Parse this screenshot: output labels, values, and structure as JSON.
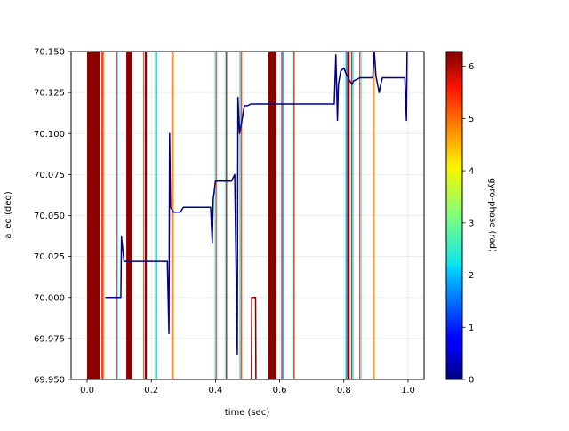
{
  "chart_data": {
    "type": "line",
    "title": "",
    "xlabel": "time (sec)",
    "ylabel": "a_eq (deg)",
    "xlim": [
      -0.05,
      1.05
    ],
    "ylim": [
      69.95,
      70.15
    ],
    "x_ticks": [
      0.0,
      0.2,
      0.4,
      0.6,
      0.8,
      1.0
    ],
    "x_tick_labels": [
      "0.0",
      "0.2",
      "0.4",
      "0.6",
      "0.8",
      "1.0"
    ],
    "y_ticks": [
      69.95,
      69.975,
      70.0,
      70.025,
      70.05,
      70.075,
      70.1,
      70.125,
      70.15
    ],
    "y_tick_labels": [
      "69.950",
      "69.975",
      "70.000",
      "70.025",
      "70.050",
      "70.075",
      "70.100",
      "70.125",
      "70.150"
    ],
    "grid": true,
    "colorbar": {
      "label": "gyro-phase (rad)",
      "colormap": "jet",
      "range": [
        0,
        6.283
      ],
      "ticks": [
        0,
        1,
        2,
        3,
        4,
        5,
        6
      ],
      "tick_labels": [
        "0",
        "1",
        "2",
        "3",
        "4",
        "5",
        "6"
      ]
    },
    "series": [
      {
        "color": "#000080",
        "points": [
          [
            0.057,
            70.0
          ],
          [
            0.105,
            70.0
          ],
          [
            0.107,
            70.037
          ],
          [
            0.115,
            70.022
          ],
          [
            0.13,
            70.022
          ],
          [
            0.25,
            70.022
          ],
          [
            0.255,
            69.978
          ],
          [
            0.257,
            70.1
          ],
          [
            0.26,
            70.055
          ],
          [
            0.27,
            70.052
          ],
          [
            0.29,
            70.052
          ],
          [
            0.3,
            70.055
          ],
          [
            0.37,
            70.055
          ],
          [
            0.385,
            70.055
          ],
          [
            0.39,
            70.033
          ],
          [
            0.393,
            70.06
          ],
          [
            0.4,
            70.071
          ],
          [
            0.45,
            70.071
          ],
          [
            0.46,
            70.075
          ],
          [
            0.468,
            69.965
          ],
          [
            0.47,
            70.122
          ],
          [
            0.475,
            70.1
          ],
          [
            0.48,
            70.105
          ],
          [
            0.49,
            70.117
          ],
          [
            0.5,
            70.117
          ],
          [
            0.51,
            70.118
          ],
          [
            0.77,
            70.118
          ],
          [
            0.775,
            70.148
          ],
          [
            0.78,
            70.108
          ],
          [
            0.783,
            70.13
          ],
          [
            0.79,
            70.138
          ],
          [
            0.8,
            70.14
          ],
          [
            0.81,
            70.135
          ],
          [
            0.825,
            70.13
          ],
          [
            0.83,
            70.132
          ],
          [
            0.85,
            70.134
          ],
          [
            0.87,
            70.134
          ],
          [
            0.89,
            70.134
          ],
          [
            0.895,
            70.15
          ],
          [
            0.9,
            70.135
          ],
          [
            0.91,
            70.125
          ],
          [
            0.915,
            70.13
          ],
          [
            0.92,
            70.134
          ],
          [
            0.99,
            70.134
          ],
          [
            0.995,
            70.108
          ],
          [
            0.997,
            70.15
          ]
        ]
      },
      {
        "color": "#7f0000",
        "points": [
          [
            0.512,
            69.95
          ],
          [
            0.513,
            70.0
          ],
          [
            0.525,
            70.0
          ],
          [
            0.526,
            69.95
          ]
        ]
      }
    ],
    "phase_bands": [
      {
        "x0": 0.0,
        "x1": 0.04,
        "phase": 6.2
      },
      {
        "x0": 0.045,
        "x1": 0.049,
        "phase": 5.6
      },
      {
        "x0": 0.05,
        "x1": 0.053,
        "phase": 4.7
      },
      {
        "x0": 0.09,
        "x1": 0.092,
        "phase": 5.8
      },
      {
        "x0": 0.093,
        "x1": 0.095,
        "phase": 2.2
      },
      {
        "x0": 0.122,
        "x1": 0.14,
        "phase": 6.2
      },
      {
        "x0": 0.175,
        "x1": 0.178,
        "phase": 5.2
      },
      {
        "x0": 0.18,
        "x1": 0.186,
        "phase": 6.2
      },
      {
        "x0": 0.21,
        "x1": 0.213,
        "phase": 3.0
      },
      {
        "x0": 0.215,
        "x1": 0.218,
        "phase": 1.9
      },
      {
        "x0": 0.263,
        "x1": 0.265,
        "phase": 5.6
      },
      {
        "x0": 0.266,
        "x1": 0.27,
        "phase": 4.6
      },
      {
        "x0": 0.398,
        "x1": 0.401,
        "phase": 2.1
      },
      {
        "x0": 0.402,
        "x1": 0.405,
        "phase": 5.0
      },
      {
        "x0": 0.43,
        "x1": 0.432,
        "phase": 2.6
      },
      {
        "x0": 0.433,
        "x1": 0.436,
        "phase": 6.2
      },
      {
        "x0": 0.475,
        "x1": 0.478,
        "phase": 2.0
      },
      {
        "x0": 0.479,
        "x1": 0.483,
        "phase": 5.0
      },
      {
        "x0": 0.565,
        "x1": 0.59,
        "phase": 6.2
      },
      {
        "x0": 0.605,
        "x1": 0.607,
        "phase": 5.6
      },
      {
        "x0": 0.608,
        "x1": 0.612,
        "phase": 2.0
      },
      {
        "x0": 0.64,
        "x1": 0.642,
        "phase": 2.6
      },
      {
        "x0": 0.643,
        "x1": 0.647,
        "phase": 5.2
      },
      {
        "x0": 0.805,
        "x1": 0.809,
        "phase": 1.9
      },
      {
        "x0": 0.81,
        "x1": 0.818,
        "phase": 6.2
      },
      {
        "x0": 0.823,
        "x1": 0.826,
        "phase": 5.4
      },
      {
        "x0": 0.827,
        "x1": 0.83,
        "phase": 2.2
      },
      {
        "x0": 0.848,
        "x1": 0.851,
        "phase": 5.2
      },
      {
        "x0": 0.852,
        "x1": 0.855,
        "phase": 2.4
      },
      {
        "x0": 0.89,
        "x1": 0.893,
        "phase": 6.0
      },
      {
        "x0": 0.894,
        "x1": 0.897,
        "phase": 4.2
      }
    ]
  }
}
